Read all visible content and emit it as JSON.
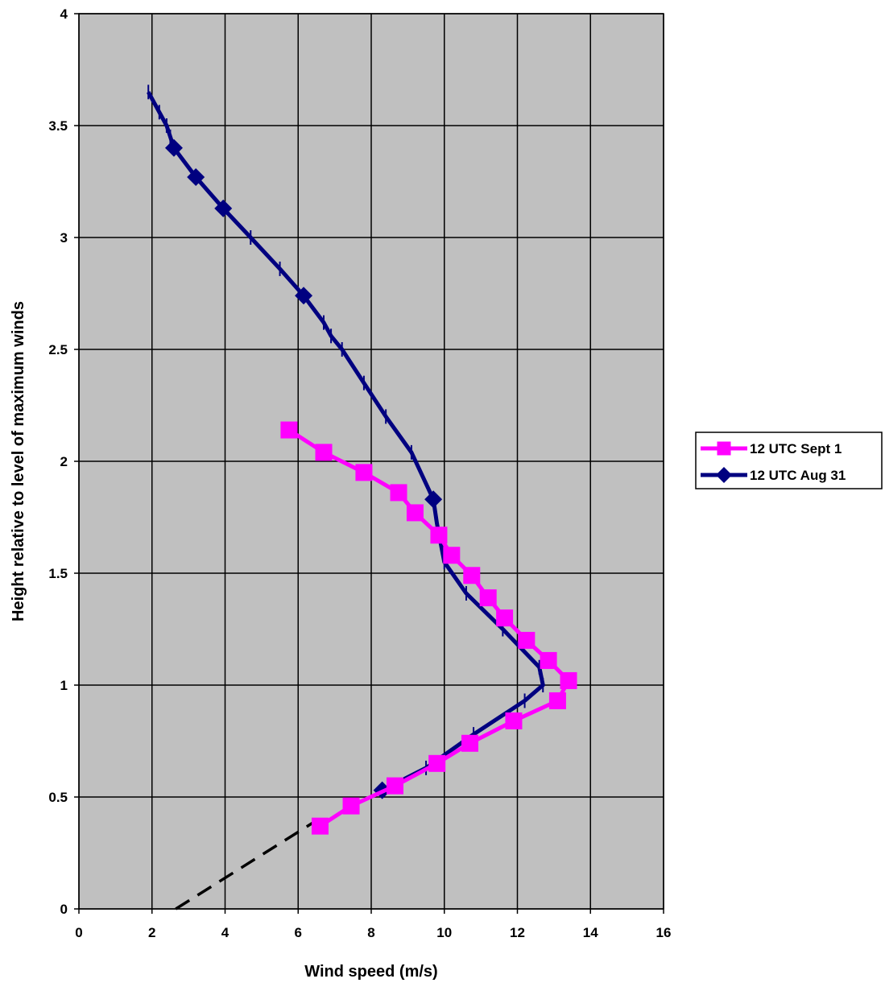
{
  "chart_data": {
    "type": "line",
    "title": "",
    "xlabel": "Wind speed (m/s)",
    "ylabel": "Height relative to level of maximum winds",
    "xlim": [
      0,
      16
    ],
    "ylim": [
      0,
      4
    ],
    "x_ticks": [
      "0",
      "2",
      "4",
      "6",
      "8",
      "10",
      "12",
      "14",
      "16"
    ],
    "y_ticks": [
      "0",
      "0.5",
      "1",
      "1.5",
      "2",
      "2.5",
      "3",
      "3.5",
      "4"
    ],
    "grid": true,
    "legend_position": "right",
    "background_color": "#C0C0C0",
    "series": [
      {
        "name": "12 UTC Sept 1",
        "color": "#FF00FF",
        "marker": "square",
        "x": [
          5.75,
          6.7,
          7.8,
          8.75,
          9.2,
          9.85,
          10.2,
          10.75,
          11.2,
          11.65,
          12.25,
          12.85,
          13.4,
          13.1,
          11.9,
          10.7,
          9.8,
          8.65,
          7.45,
          6.6
        ],
        "y": [
          2.14,
          2.04,
          1.95,
          1.86,
          1.77,
          1.67,
          1.58,
          1.49,
          1.39,
          1.3,
          1.2,
          1.11,
          1.02,
          0.93,
          0.84,
          0.74,
          0.65,
          0.55,
          0.46,
          0.37
        ]
      },
      {
        "name": "12 UTC Aug 31",
        "color": "#000080",
        "marker": "diamond",
        "x": [
          1.9,
          2.2,
          2.4,
          2.5,
          2.6,
          3.2,
          3.95,
          4.7,
          5.5,
          6.15,
          6.7,
          6.9,
          7.2,
          7.8,
          8.4,
          9.1,
          9.7,
          9.8,
          10.0,
          10.6,
          11.6,
          12.6,
          12.7,
          12.2,
          10.8,
          9.5,
          8.3
        ],
        "y": [
          3.65,
          3.56,
          3.5,
          3.45,
          3.4,
          3.27,
          3.13,
          3.0,
          2.86,
          2.74,
          2.62,
          2.56,
          2.5,
          2.35,
          2.2,
          2.04,
          1.83,
          1.72,
          1.55,
          1.41,
          1.25,
          1.08,
          1.0,
          0.93,
          0.78,
          0.63,
          0.53
        ],
        "marker_indices": [
          4,
          5,
          6,
          9,
          16,
          26
        ]
      },
      {
        "name": "",
        "color": "#000000",
        "dashed": true,
        "x": [
          2.65,
          6.55
        ],
        "y": [
          0.0,
          0.4
        ]
      }
    ]
  }
}
